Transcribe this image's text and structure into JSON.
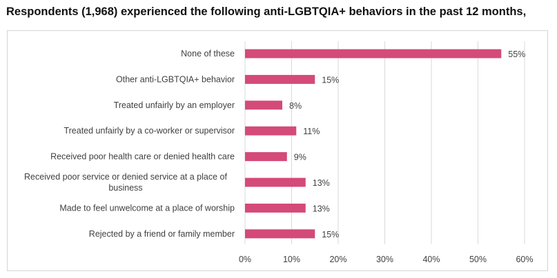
{
  "chart_data": {
    "type": "bar",
    "orientation": "horizontal",
    "title": "Respondents (1,968) experienced the following anti-LGBTQIA+ behaviors in the past 12 months,",
    "categories": [
      [
        "None of these"
      ],
      [
        "Other anti-LGBTQIA+ behavior"
      ],
      [
        "Treated unfairly by an employer"
      ],
      [
        "Treated unfairly by a co-worker or supervisor"
      ],
      [
        "Received poor health care or denied health care"
      ],
      [
        "Received poor service or denied service at a place of",
        "business"
      ],
      [
        "Made to feel unwelcome at a place of worship"
      ],
      [
        "Rejected by a friend or family member"
      ]
    ],
    "values": [
      55,
      15,
      8,
      11,
      9,
      13,
      13,
      15
    ],
    "value_labels": [
      "55%",
      "15%",
      "8%",
      "11%",
      "9%",
      "13%",
      "13%",
      "15%"
    ],
    "xlim": [
      0,
      60
    ],
    "xticks": [
      0,
      10,
      20,
      30,
      40,
      50,
      60
    ],
    "xtick_labels": [
      "0%",
      "10%",
      "20%",
      "30%",
      "40%",
      "50%",
      "60%"
    ],
    "xlabel": "",
    "ylabel": "",
    "grid": "vertical",
    "bar_color": "#d44a78",
    "grid_color": "#d9d9d9"
  }
}
